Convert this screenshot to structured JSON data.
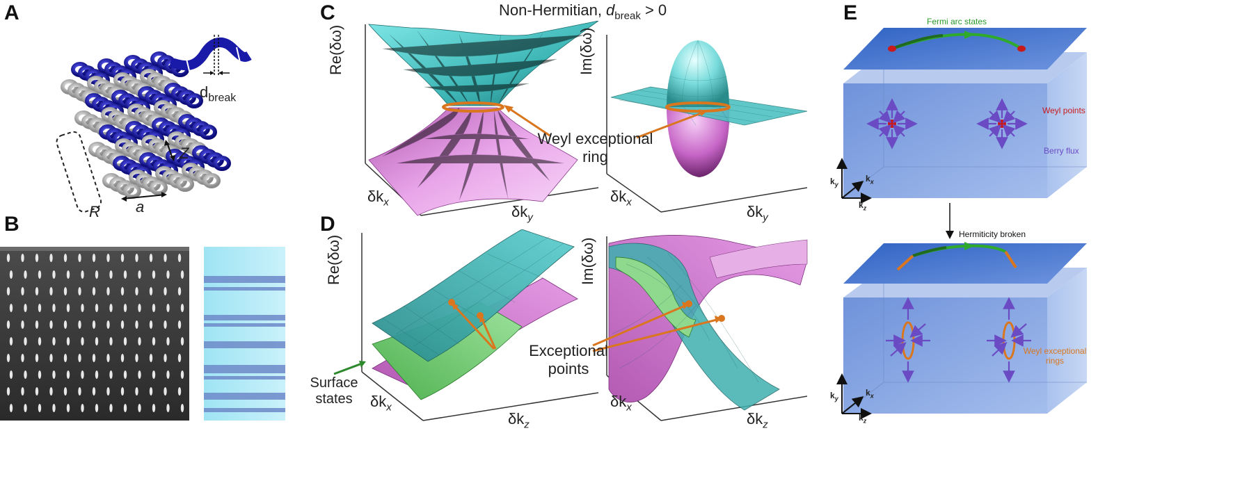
{
  "panels": {
    "a": {
      "letter": "A",
      "labels": {
        "d": "d",
        "break": "break",
        "z": "Z",
        "r": "R",
        "a": "a"
      }
    },
    "b": {
      "letter": "B"
    },
    "c": {
      "letter": "C",
      "title_prefix": "Non-Hermitian, ",
      "title_d": "d",
      "title_sub": "break",
      "title_suffix": " > 0",
      "left": {
        "zlabel": "Re(δω)",
        "xlabel_base": "δk",
        "xlabel_sub": "x",
        "ylabel_base": "δk",
        "ylabel_sub": "y"
      },
      "right": {
        "zlabel": "Im(δω)",
        "xlabel_base": "δk",
        "xlabel_sub": "x",
        "ylabel_base": "δk",
        "ylabel_sub": "y"
      },
      "annotation_line1": "Weyl exceptional",
      "annotation_line2": "ring"
    },
    "d": {
      "letter": "D",
      "left": {
        "zlabel": "Re(δω)",
        "xlabel_base": "δk",
        "xlabel_sub": "x",
        "ylabel_base": "δk",
        "ylabel_sub": "z"
      },
      "right": {
        "zlabel": "Im(δω)",
        "xlabel_base": "δk",
        "xlabel_sub": "x",
        "ylabel_base": "δk",
        "ylabel_sub": "z"
      },
      "annotation_line1": "Exceptional",
      "annotation_line2": "points",
      "surface_line1": "Surface",
      "surface_line2": "states"
    },
    "e": {
      "letter": "E",
      "fermi_arc": "Fermi arc states",
      "weyl_points": "Weyl points",
      "berry_flux": "Berry flux",
      "hermiticity": "Hermiticity broken",
      "weyl_rings_line1": "Weyl exceptional",
      "weyl_rings_line2": "rings",
      "axes": {
        "ky": "k",
        "ky_sub": "y",
        "kx": "k",
        "kx_sub": "x",
        "kz": "k",
        "kz_sub": "z"
      }
    }
  },
  "colors": {
    "blue": "#1a1aa8",
    "gray": "#b8b8b8",
    "cyan": "#47c9c9",
    "teal": "#2c8f8f",
    "magenta": "#d77ad7",
    "green": "#6ecb6e",
    "orange": "#d9761e",
    "box_blue": "#6f93d6",
    "arc_green": "#2faa2a",
    "purple": "#6a4bc4",
    "red": "#c81a1a"
  },
  "icons": [
    "helix-lattice",
    "sem-micrograph",
    "optical-micrograph",
    "band-surface",
    "brillouin-box"
  ]
}
